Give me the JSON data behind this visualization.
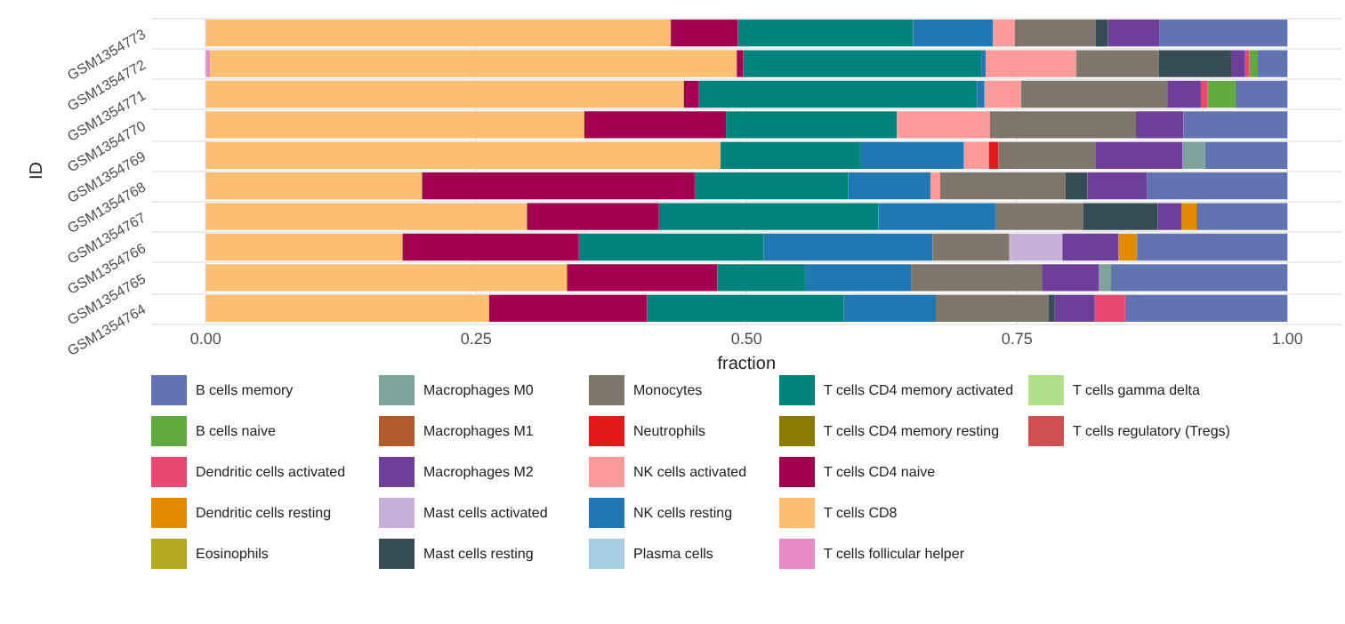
{
  "chart_data": {
    "type": "bar",
    "orientation": "horizontal",
    "stacked": true,
    "xlabel": "fraction",
    "ylabel": "ID",
    "categories": [
      "GSM1354773",
      "GSM1354772",
      "GSM1354771",
      "GSM1354770",
      "GSM1354769",
      "GSM1354768",
      "GSM1354767",
      "GSM1354766",
      "GSM1354765",
      "GSM1354764"
    ],
    "xlim": [
      -0.05,
      1.05
    ],
    "xticks": [
      {
        "value": 0,
        "label": "0.00"
      },
      {
        "value": 0.25,
        "label": "0.25"
      },
      {
        "value": 0.5,
        "label": "0.50"
      },
      {
        "value": 0.75,
        "label": "0.75"
      },
      {
        "value": 1,
        "label": "1.00"
      }
    ],
    "grid": true,
    "legend": "bottom",
    "series": [
      {
        "name": "T cells regulatory (Tregs)",
        "color": "#d05050",
        "values": [
          null,
          null,
          null,
          null,
          null,
          null,
          null,
          null,
          null,
          null
        ]
      },
      {
        "name": "T cells gamma delta",
        "color": "#b2df8a",
        "values": [
          null,
          null,
          null,
          null,
          null,
          null,
          null,
          null,
          null,
          null
        ]
      },
      {
        "name": "T cells follicular helper",
        "color": "#e78ac3",
        "values": [
          null,
          0.004,
          null,
          null,
          null,
          null,
          null,
          null,
          null,
          null
        ]
      },
      {
        "name": "T cells CD8",
        "color": "#fdbf6f",
        "values": [
          0.43,
          0.487,
          0.442,
          0.35,
          0.476,
          0.2,
          0.297,
          0.182,
          0.334,
          0.262
        ]
      },
      {
        "name": "T cells CD4 naive",
        "color": "#a3004f",
        "values": [
          0.062,
          0.006,
          0.014,
          0.131,
          0,
          0.252,
          0.122,
          0.163,
          0.139,
          0.146
        ]
      },
      {
        "name": "T cells CD4 memory resting",
        "color": "#8c7a00",
        "values": [
          0,
          0,
          0,
          0,
          0,
          0,
          0,
          0,
          0,
          0
        ]
      },
      {
        "name": "T cells CD4 memory activated",
        "color": "#00837d",
        "values": [
          0.162,
          0.22,
          0.257,
          0.158,
          0.129,
          0.142,
          0.203,
          0.171,
          0.081,
          0.182
        ]
      },
      {
        "name": "Plasma cells",
        "color": "#a6cee3",
        "values": [
          0,
          0,
          0,
          0,
          0,
          0,
          0,
          0,
          0,
          0
        ]
      },
      {
        "name": "NK cells resting",
        "color": "#1f78b4",
        "values": [
          0.074,
          0.004,
          0.007,
          0,
          0.096,
          0.076,
          0.108,
          0.156,
          0.098,
          0.085
        ]
      },
      {
        "name": "NK cells activated",
        "color": "#fb9a99",
        "values": [
          0.02,
          0.084,
          0.034,
          0.086,
          0.023,
          0.009,
          0,
          0,
          0,
          0
        ]
      },
      {
        "name": "Neutrophils",
        "color": "#e31a1c",
        "values": [
          0,
          0,
          0,
          0,
          0.009,
          0,
          0,
          0,
          0,
          0
        ]
      },
      {
        "name": "Monocytes",
        "color": "#7e766a",
        "values": [
          0.075,
          0.076,
          0.135,
          0.135,
          0.09,
          0.116,
          0.081,
          0.071,
          0.121,
          0.104
        ]
      },
      {
        "name": "Mast cells resting",
        "color": "#364c55",
        "values": [
          0.011,
          0.067,
          0,
          0,
          0,
          0.02,
          0.069,
          0,
          0,
          0.006
        ]
      },
      {
        "name": "Mast cells activated",
        "color": "#c8b1d6",
        "values": [
          0,
          0,
          0,
          0,
          0,
          0,
          0,
          0.049,
          0,
          0
        ]
      },
      {
        "name": "Macrophages M2",
        "color": "#6e3f9a",
        "values": [
          0.048,
          0.013,
          0.031,
          0.044,
          0.08,
          0.055,
          0.022,
          0.052,
          0.053,
          0.037
        ]
      },
      {
        "name": "Macrophages M1",
        "color": "#b35a2c",
        "values": [
          0,
          0,
          0,
          0,
          0,
          0,
          0,
          0,
          0,
          0
        ]
      },
      {
        "name": "Macrophages M0",
        "color": "#7da39a",
        "values": [
          0,
          0,
          0,
          0,
          0.021,
          0,
          0,
          0,
          0.011,
          0
        ]
      },
      {
        "name": "Eosinophils",
        "color": "#b2a91e",
        "values": [
          0,
          0,
          0,
          0,
          0,
          0,
          0,
          0,
          0,
          0
        ]
      },
      {
        "name": "Dendritic cells resting",
        "color": "#e08b00",
        "values": [
          0,
          0,
          0,
          0,
          0,
          0,
          0.014,
          0.017,
          0,
          0
        ]
      },
      {
        "name": "Dendritic cells activated",
        "color": "#e8476f",
        "values": [
          0,
          0.004,
          0.006,
          0,
          0,
          0,
          0,
          0,
          0,
          0.028
        ]
      },
      {
        "name": "B cells naive",
        "color": "#5faa3d",
        "values": [
          0,
          0.007,
          0.026,
          0,
          0,
          0,
          0,
          0,
          0,
          0
        ]
      },
      {
        "name": "B cells memory",
        "color": "#6173b0",
        "values": [
          0.118,
          0.028,
          0.048,
          0.096,
          0.076,
          0.13,
          0.084,
          0.139,
          0.163,
          0.15
        ]
      }
    ]
  }
}
